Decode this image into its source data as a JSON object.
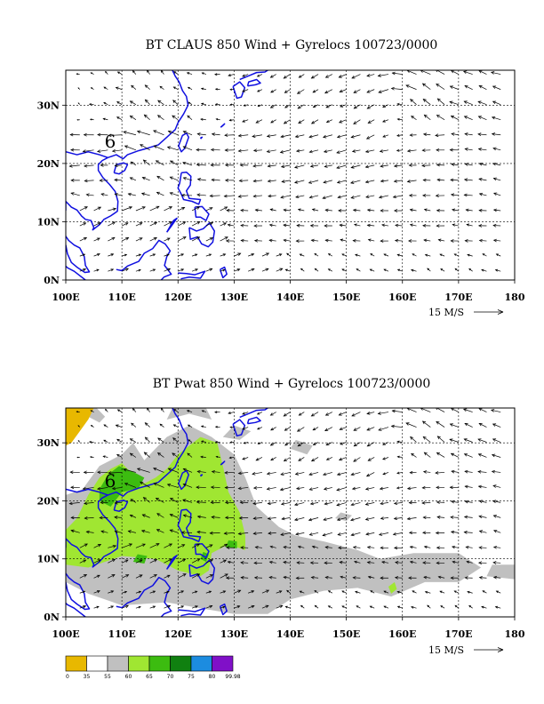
{
  "panels": [
    {
      "id": "claus",
      "title": "BT CLAUS 850 Wind + Gyrelocs 100723/0000",
      "x_ticks": [
        "100E",
        "110E",
        "120E",
        "130E",
        "140E",
        "150E",
        "160E",
        "170E",
        "180"
      ],
      "y_ticks": [
        "0N",
        "10N",
        "20N",
        "30N"
      ],
      "x_range_deg": [
        100,
        180
      ],
      "y_range_deg": [
        0,
        36
      ],
      "vector_scale_label": "15 M/S",
      "gyre_marker": "6",
      "gyre_location": {
        "lon": 107.5,
        "lat": 23.5
      },
      "shading": false
    },
    {
      "id": "pwat",
      "title": "BT Pwat 850 Wind + Gyrelocs 100723/0000",
      "x_ticks": [
        "100E",
        "110E",
        "120E",
        "130E",
        "140E",
        "150E",
        "160E",
        "170E",
        "180"
      ],
      "y_ticks": [
        "0N",
        "10N",
        "20N",
        "30N"
      ],
      "x_range_deg": [
        100,
        180
      ],
      "y_range_deg": [
        0,
        36
      ],
      "vector_scale_label": "15 M/S",
      "gyre_marker": "6",
      "gyre_location": {
        "lon": 107.5,
        "lat": 23.5
      },
      "shading": true
    }
  ],
  "colorbar": {
    "labels": [
      "0",
      "35",
      "55",
      "60",
      "65",
      "70",
      "75",
      "80",
      "99.98"
    ],
    "colors": [
      "#e8b800",
      "#ffffff",
      "#c0c0c0",
      "#a0e632",
      "#3cbc10",
      "#108010",
      "#1c8ce0",
      "#8010c8"
    ]
  },
  "colors": {
    "coastline": "#1010e0",
    "grid": "#000000",
    "gray_shade": "#c0c0c0",
    "lime_shade": "#a0e632",
    "green_shade": "#3cbc10"
  }
}
